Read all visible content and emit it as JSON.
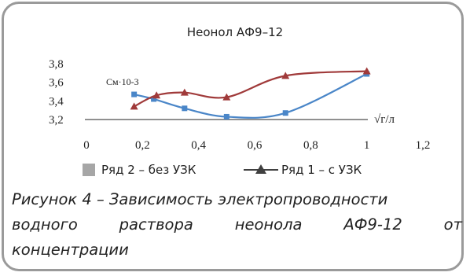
{
  "chart_data": {
    "type": "line",
    "title": "Неонол АФ9–12",
    "ylabel": "См·10-3",
    "xlabel": "√г/л",
    "xlim": [
      0,
      1.2
    ],
    "ylim": [
      3.2,
      3.8
    ],
    "xticks": [
      "0",
      "0,2",
      "0,4",
      "0,6",
      "0,8",
      "1",
      "1,2"
    ],
    "yticks": [
      "3,2",
      "3,4",
      "3,6",
      "3,8"
    ],
    "series": [
      {
        "name": "Ряд 2 – без УЗК",
        "marker": "square",
        "color": "#4a86c8",
        "x": [
          0.17,
          0.24,
          0.35,
          0.5,
          0.71,
          1.0
        ],
        "y": [
          3.47,
          3.42,
          3.32,
          3.23,
          3.27,
          3.69
        ]
      },
      {
        "name": "Ряд 1 – с УЗК",
        "marker": "triangle",
        "color": "#a03a3a",
        "x": [
          0.17,
          0.25,
          0.35,
          0.5,
          0.71,
          1.0
        ],
        "y": [
          3.34,
          3.46,
          3.49,
          3.44,
          3.67,
          3.72
        ]
      }
    ]
  },
  "legend": {
    "series2_label": "Ряд 2 – без УЗК",
    "series1_label": "Ряд 1 – с УЗК"
  },
  "caption": {
    "line1": "Рисунок 4 – Зависимость электропроводности",
    "line2_words": [
      "водного",
      "раствора",
      "неонола",
      "АФ9-12",
      "от"
    ],
    "line3": "концентрации"
  }
}
